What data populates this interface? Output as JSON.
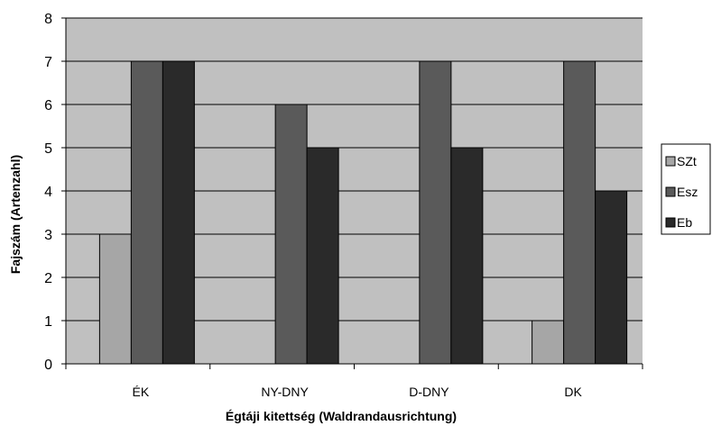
{
  "chart_data": {
    "type": "bar",
    "title": "",
    "xlabel": "Égtáji kitettség (Waldrandausrichtung)",
    "ylabel": "Fajszám (Artenzahl)",
    "categories": [
      "ÉK",
      "NY-DNY",
      "D-DNY",
      "DK"
    ],
    "series": [
      {
        "name": "SZt",
        "values": [
          3,
          0,
          0,
          1
        ]
      },
      {
        "name": "Esz",
        "values": [
          7,
          6,
          7,
          7
        ]
      },
      {
        "name": "Eb",
        "values": [
          7,
          5,
          5,
          4
        ]
      }
    ],
    "ylim": [
      0,
      8
    ],
    "yticks": [
      "0",
      "1",
      "2",
      "3",
      "4",
      "5",
      "6",
      "7",
      "8"
    ],
    "grid": true,
    "legend_position": "right",
    "colors": {
      "plot_background": "#c0c0c0",
      "series": [
        "#a6a6a6",
        "#5a5a5a",
        "#2a2a2a"
      ],
      "gridline": "#000000",
      "bar_outline": "#000000"
    }
  }
}
